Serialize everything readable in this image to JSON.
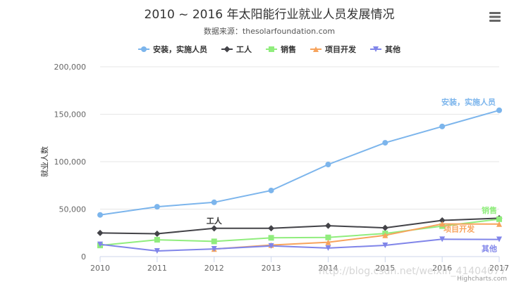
{
  "chart_data": {
    "type": "line",
    "title": "2010 ~ 2016 年太阳能行业就业人员发展情况",
    "subtitle": "数据来源：thesolarfoundation.com",
    "xlabel": "",
    "ylabel": "就业人数",
    "categories": [
      "2010",
      "2011",
      "2012",
      "2013",
      "2014",
      "2015",
      "2016",
      "2017"
    ],
    "yticks": [
      "0",
      "50,000",
      "100,000",
      "150,000",
      "200,000"
    ],
    "ylim": [
      0,
      200000
    ],
    "grid": true,
    "legend_position": "top-center",
    "series": [
      {
        "name": "安装，实施人员",
        "color": "#7cb5ec",
        "marker": "circle",
        "values": [
          43934,
          52503,
          57177,
          69658,
          97031,
          119931,
          137133,
          154175
        ]
      },
      {
        "name": "工人",
        "color": "#434348",
        "marker": "diamond",
        "values": [
          24916,
          24064,
          29742,
          29851,
          32490,
          30282,
          38121,
          40434
        ]
      },
      {
        "name": "销售",
        "color": "#90ed7d",
        "marker": "square",
        "values": [
          11744,
          17722,
          16005,
          19771,
          20185,
          24377,
          32147,
          39387
        ]
      },
      {
        "name": "项目开发",
        "color": "#f7a35c",
        "marker": "triangle",
        "values": [
          null,
          null,
          7988,
          12169,
          15112,
          22452,
          34400,
          34227
        ]
      },
      {
        "name": "其他",
        "color": "#8085e9",
        "marker": "triangle-down",
        "values": [
          12908,
          5948,
          8105,
          11248,
          8989,
          11816,
          18274,
          18111
        ]
      }
    ],
    "annotations": [
      {
        "text": "安装，实施人员",
        "series": 0
      },
      {
        "text": "工人",
        "series": 1
      },
      {
        "text": "销售",
        "series": 2
      },
      {
        "text": "项目开发",
        "series": 3
      },
      {
        "text": "其他",
        "series": 4
      }
    ],
    "credits": "Highcharts.com",
    "watermark": "http://blog.csdn.net/weixin_41404077"
  }
}
